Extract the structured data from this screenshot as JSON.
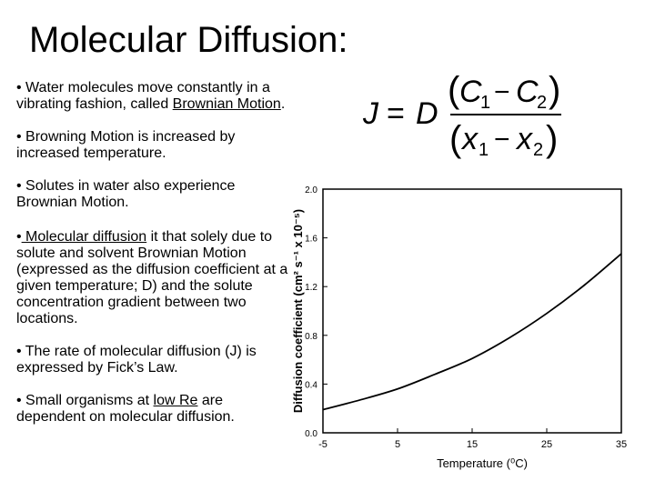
{
  "slide": {
    "title": "Molecular Diffusion:",
    "bullets": [
      {
        "prefix": "•  ",
        "parts": [
          {
            "text": "Water molecules move constantly in a vibrating fashion, called ",
            "u": false
          },
          {
            "text": "Brownian Motion",
            "u": true
          },
          {
            "text": ".",
            "u": false
          }
        ]
      },
      {
        "prefix": "•  ",
        "parts": [
          {
            "text": "Browning Motion is increased by increased temperature.",
            "u": false
          }
        ]
      },
      {
        "prefix": "•  ",
        "parts": [
          {
            "text": "Solutes in water also experience Brownian Motion.",
            "u": false
          }
        ]
      },
      {
        "prefix": "•",
        "parts": [
          {
            "text": " Molecular diffusion",
            "u": true
          },
          {
            "text": " it that solely due to solute and solvent Brownian Motion (expressed as the diffusion coefficient at a given temperature; D) and the solute concentration gradient between two locations.",
            "u": false
          }
        ]
      },
      {
        "prefix": "• ",
        "parts": [
          {
            "text": "The rate of molecular diffusion (J) is expressed by Fick’s Law.",
            "u": false
          }
        ]
      },
      {
        "prefix": "• ",
        "parts": [
          {
            "text": "Small organisms at ",
            "u": false
          },
          {
            "text": "low Re",
            "u": true
          },
          {
            "text": " are dependent on molecular diffusion.",
            "u": false
          }
        ]
      }
    ]
  },
  "equation": {
    "lhs": "J",
    "equals": "=",
    "coef": "D",
    "num_var1": "C",
    "num_sub1": "1",
    "num_minus": "−",
    "num_var2": "C",
    "num_sub2": "2",
    "den_var1": "x",
    "den_sub1": "1",
    "den_minus": "−",
    "den_var2": "x",
    "den_sub2": "2",
    "open_paren": "(",
    "close_paren": ")"
  },
  "chart_data": {
    "type": "line",
    "title": "",
    "xlabel": "Temperature (⁰C)",
    "ylabel": "Diffusion coefficient (cm² s⁻¹ x 10⁻⁵)",
    "xlim": [
      -5,
      35
    ],
    "ylim": [
      0.0,
      2.0
    ],
    "x_ticks": [
      -5,
      5,
      15,
      25,
      35
    ],
    "y_ticks": [
      0.0,
      0.4,
      0.8,
      1.2,
      1.6,
      2.0
    ],
    "y_tick_labels": [
      "0.0",
      "0.4",
      "0.8",
      "1.2",
      "1.6",
      "2.0"
    ],
    "grid": false,
    "series": [
      {
        "x": [
          -5,
          0,
          5,
          10,
          15,
          20,
          25,
          30,
          35
        ],
        "y": [
          0.19,
          0.27,
          0.36,
          0.48,
          0.61,
          0.78,
          0.98,
          1.21,
          1.47
        ]
      }
    ]
  }
}
